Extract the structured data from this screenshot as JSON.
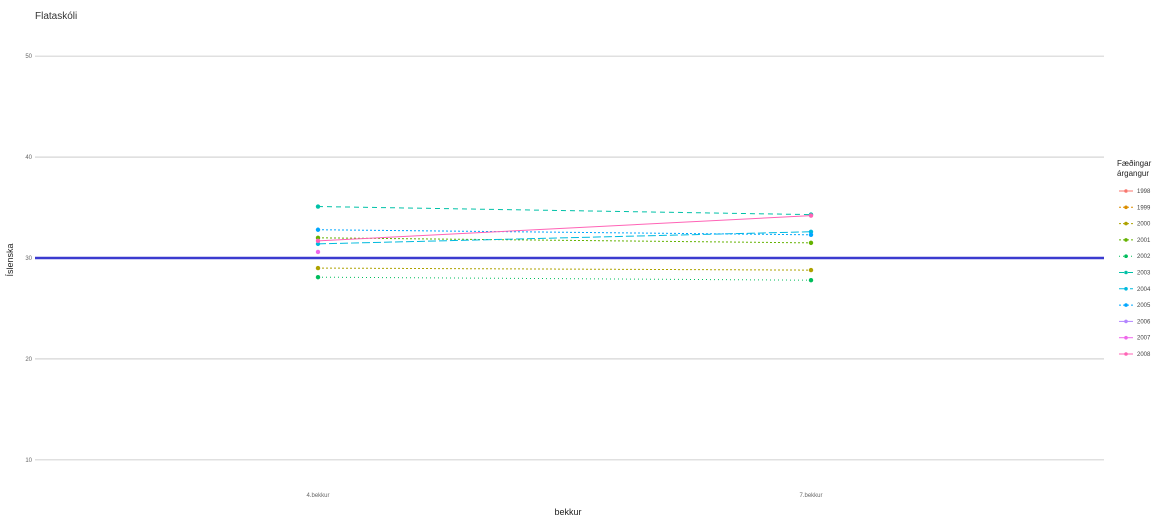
{
  "chart_data": {
    "type": "line",
    "title": "Flataskóli",
    "xlabel": "bekkur",
    "ylabel": "Íslenska",
    "categories": [
      "4.bekkur",
      "7.bekkur"
    ],
    "ylim": [
      8,
      52
    ],
    "yticks": [
      10,
      20,
      30,
      40,
      50
    ],
    "grid": true,
    "reference_line": {
      "y": 30,
      "color": "#3b3bcf"
    },
    "legend": {
      "title_lines": [
        "Fæðingar",
        "árgangur"
      ],
      "placement": "right"
    },
    "series": [
      {
        "name": "1998",
        "color": "#F8766D",
        "values": [
          null,
          null
        ],
        "dash": "6,3"
      },
      {
        "name": "1999",
        "color": "#DB8E00",
        "values": [
          null,
          null
        ],
        "dash": "2,2"
      },
      {
        "name": "2000",
        "color": "#AEA200",
        "values": [
          29,
          28.8
        ],
        "dash": "2,2"
      },
      {
        "name": "2001",
        "color": "#64B200",
        "values": [
          32,
          31.5
        ],
        "dash": "2,2"
      },
      {
        "name": "2002",
        "color": "#00BD5C",
        "values": [
          28.1,
          27.8
        ],
        "dash": "1,3"
      },
      {
        "name": "2003",
        "color": "#00C1A7",
        "values": [
          35.1,
          34.3
        ],
        "dash": "5,4"
      },
      {
        "name": "2004",
        "color": "#00BADE",
        "values": [
          31.4,
          32.6
        ],
        "dash": "8,3"
      },
      {
        "name": "2005",
        "color": "#00A6FF",
        "values": [
          32.8,
          32.3
        ],
        "dash": "2,2"
      },
      {
        "name": "2006",
        "color": "#B385FF",
        "values": [
          null,
          null
        ],
        "dash": "none"
      },
      {
        "name": "2007",
        "color": "#EF67EB",
        "values": [
          30.6,
          null
        ],
        "dash": "none"
      },
      {
        "name": "2008",
        "color": "#FF63B6",
        "values": [
          31.7,
          34.2
        ],
        "dash": "none"
      }
    ]
  }
}
